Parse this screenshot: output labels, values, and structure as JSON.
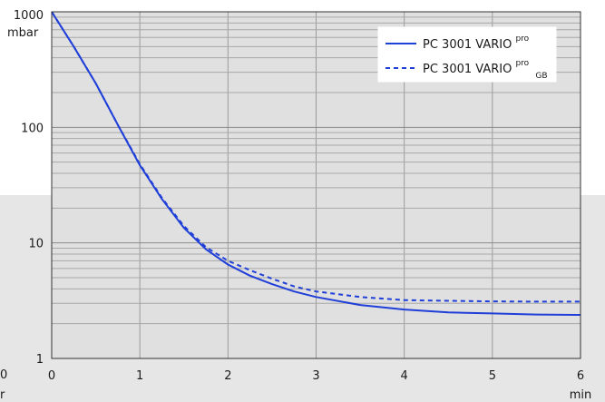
{
  "chart_data": {
    "type": "line",
    "y_scale": "log",
    "xlim": [
      0,
      6
    ],
    "ylim": [
      1,
      1000
    ],
    "grid": true,
    "legend_placement": "top-right",
    "x_unit_label": "min",
    "y_unit_label": "mbar",
    "x_ticks": [
      "0",
      "1",
      "2",
      "3",
      "4",
      "5",
      "6"
    ],
    "y_ticks": [
      "1",
      "10",
      "100",
      "1000"
    ],
    "edge_labels": {
      "left_bottom": "0",
      "left_unit": "r"
    },
    "series": [
      {
        "name": "PC 3001 VARIO",
        "name_sup": "pro",
        "name_sub": "",
        "style": "solid",
        "color": "#1f3fd8",
        "x": [
          0,
          0.25,
          0.5,
          0.75,
          1.0,
          1.25,
          1.5,
          1.75,
          2.0,
          2.25,
          2.5,
          2.75,
          3.0,
          3.5,
          4.0,
          4.5,
          5.0,
          5.5,
          6.0
        ],
        "y": [
          1000,
          500,
          240,
          105,
          47,
          24,
          13.5,
          8.8,
          6.5,
          5.2,
          4.4,
          3.8,
          3.4,
          2.9,
          2.65,
          2.5,
          2.45,
          2.4,
          2.38
        ]
      },
      {
        "name": "PC 3001 VARIO",
        "name_sup": "pro",
        "name_sub": "GB",
        "style": "dashed",
        "color": "#1f3fd8",
        "x": [
          0,
          0.25,
          0.5,
          0.75,
          1.0,
          1.25,
          1.5,
          1.75,
          2.0,
          2.25,
          2.5,
          2.75,
          3.0,
          3.5,
          4.0,
          4.5,
          5.0,
          5.5,
          6.0
        ],
        "y": [
          1000,
          500,
          240,
          105,
          48,
          24.5,
          14,
          9.2,
          7.0,
          5.8,
          4.9,
          4.2,
          3.8,
          3.4,
          3.2,
          3.15,
          3.12,
          3.1,
          3.1
        ]
      }
    ]
  }
}
